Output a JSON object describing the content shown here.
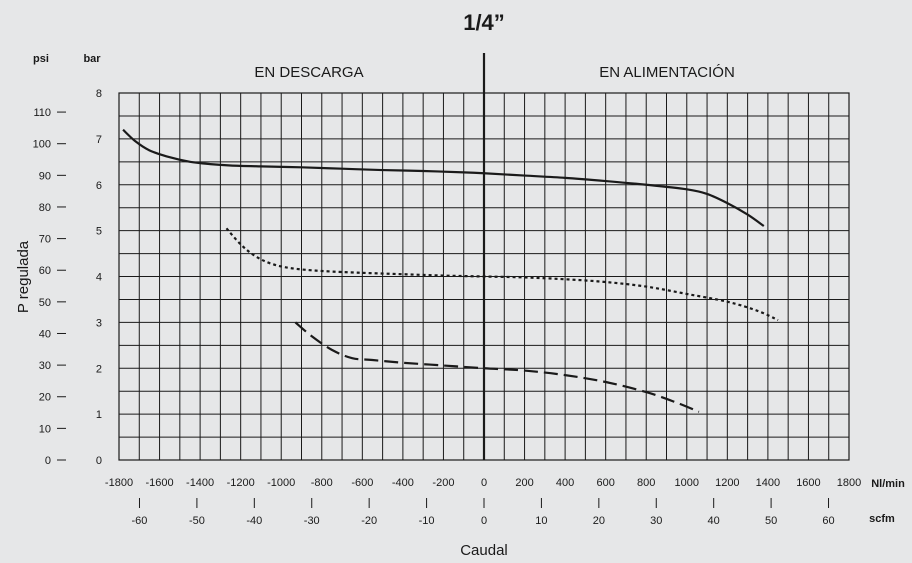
{
  "chart_data": {
    "type": "line",
    "title": "1/4”",
    "regions": [
      "EN DESCARGA",
      "EN ALIMENTACIÓN"
    ],
    "ylabel": "P regulada",
    "xlabel": "Caudal",
    "y_units": {
      "psi": "psi",
      "bar": "bar"
    },
    "x_units": {
      "nlmin": "Nl/min",
      "scfm": "scfm"
    },
    "ylim_bar": [
      0,
      8
    ],
    "xlim_nlmin": [
      -1800,
      1800
    ],
    "bar_ticks": [
      "0",
      "1",
      "2",
      "3",
      "4",
      "5",
      "6",
      "7",
      "8"
    ],
    "psi_ticks": [
      "0",
      "10",
      "20",
      "30",
      "40",
      "50",
      "60",
      "70",
      "80",
      "90",
      "100",
      "110"
    ],
    "nlmin_ticks": [
      "-1800",
      "-1600",
      "-1400",
      "-1200",
      "-1000",
      "-800",
      "-600",
      "-400",
      "-200",
      "0",
      "200",
      "400",
      "600",
      "800",
      "1000",
      "1200",
      "1400",
      "1600",
      "1800"
    ],
    "scfm_ticks": [
      "-60",
      "-50",
      "-40",
      "-30",
      "-20",
      "-10",
      "0",
      "10",
      "20",
      "30",
      "40",
      "50",
      "60"
    ],
    "grid": true,
    "series": [
      {
        "style": "solid",
        "x": [
          -1780,
          -1720,
          -1650,
          -1550,
          -1450,
          -1350,
          -1250,
          -1100,
          -900,
          -700,
          -500,
          -300,
          -100,
          0,
          200,
          400,
          600,
          800,
          1000,
          1100,
          1200,
          1300,
          1380
        ],
        "y": [
          7.2,
          6.95,
          6.75,
          6.6,
          6.5,
          6.45,
          6.42,
          6.4,
          6.38,
          6.35,
          6.32,
          6.3,
          6.27,
          6.25,
          6.2,
          6.15,
          6.08,
          6.0,
          5.9,
          5.8,
          5.6,
          5.35,
          5.1
        ]
      },
      {
        "style": "dotted",
        "x": [
          -1270,
          -1200,
          -1130,
          -1050,
          -950,
          -800,
          -600,
          -400,
          -200,
          0,
          200,
          400,
          600,
          800,
          1000,
          1200,
          1350,
          1450
        ],
        "y": [
          5.05,
          4.7,
          4.45,
          4.28,
          4.18,
          4.12,
          4.08,
          4.05,
          4.02,
          4.0,
          3.98,
          3.94,
          3.88,
          3.78,
          3.62,
          3.45,
          3.25,
          3.05
        ]
      },
      {
        "style": "dashed",
        "x": [
          -930,
          -850,
          -750,
          -650,
          -550,
          -400,
          -200,
          0,
          200,
          400,
          600,
          800,
          950,
          1060
        ],
        "y": [
          3.0,
          2.7,
          2.4,
          2.22,
          2.18,
          2.12,
          2.06,
          2.0,
          1.95,
          1.85,
          1.7,
          1.48,
          1.25,
          1.05
        ]
      }
    ]
  }
}
